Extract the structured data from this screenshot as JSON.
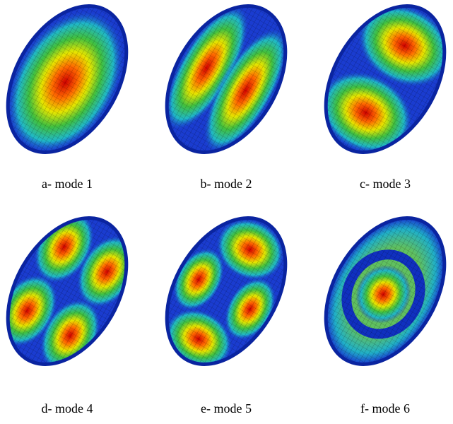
{
  "figures": [
    {
      "caption": "a- mode 1"
    },
    {
      "caption": "b- mode 2"
    },
    {
      "caption": "c- mode 3"
    },
    {
      "caption": "d- mode 4"
    },
    {
      "caption": "e- mode 5"
    },
    {
      "caption": "f- mode 6"
    }
  ]
}
